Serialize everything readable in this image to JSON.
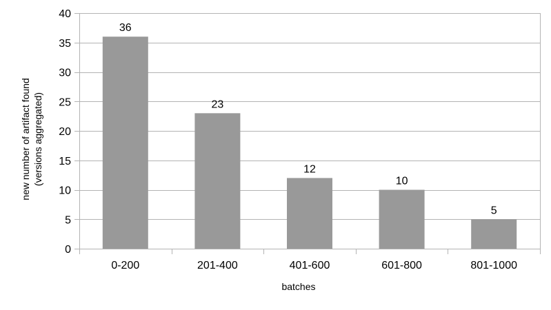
{
  "chart_data": {
    "type": "bar",
    "title": "",
    "xlabel": "batches",
    "ylabel_lines": [
      "new number of artifact found",
      "(versions aggregated)"
    ],
    "categories": [
      "0-200",
      "201-400",
      "401-600",
      "601-800",
      "801-1000"
    ],
    "values": [
      36,
      23,
      12,
      10,
      5
    ],
    "data_labels": [
      "36",
      "23",
      "12",
      "10",
      "5"
    ],
    "ylim": [
      0,
      40
    ],
    "yticks": [
      "0",
      "5",
      "10",
      "15",
      "20",
      "25",
      "30",
      "35",
      "40"
    ],
    "grid": true,
    "legend": "none",
    "bar_color": "#999999",
    "grid_color": "#b3b3b3"
  }
}
